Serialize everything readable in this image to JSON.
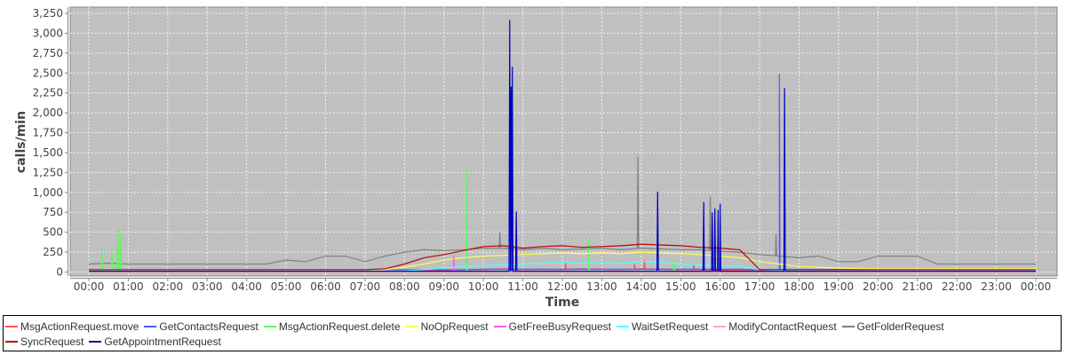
{
  "chart_data": {
    "type": "line",
    "xlabel": "Time",
    "ylabel": "calls/min",
    "ylim": [
      0,
      3250
    ],
    "yticks": [
      "0",
      "250",
      "500",
      "750",
      "1,000",
      "1,250",
      "1,500",
      "1,750",
      "2,000",
      "2,250",
      "2,500",
      "2,750",
      "3,000",
      "3,250"
    ],
    "ytick_values": [
      0,
      250,
      500,
      750,
      1000,
      1250,
      1500,
      1750,
      2000,
      2250,
      2500,
      2750,
      3000,
      3250
    ],
    "xticks": [
      "00:00",
      "01:00",
      "02:00",
      "03:00",
      "04:00",
      "05:00",
      "06:00",
      "07:00",
      "08:00",
      "09:00",
      "10:00",
      "11:00",
      "12:00",
      "13:00",
      "14:00",
      "15:00",
      "16:00",
      "17:00",
      "18:00",
      "19:00",
      "20:00",
      "21:00",
      "22:00",
      "23:00",
      "00:00"
    ],
    "grid": true,
    "legend_position": "bottom",
    "plot_background": "#c0c0c0",
    "sample_times": [
      "00:00",
      "00:30",
      "01:00",
      "01:30",
      "02:00",
      "02:30",
      "03:00",
      "03:30",
      "04:00",
      "04:30",
      "05:00",
      "05:30",
      "06:00",
      "06:30",
      "07:00",
      "07:30",
      "08:00",
      "08:30",
      "09:00",
      "09:30",
      "10:00",
      "10:30",
      "11:00",
      "11:30",
      "12:00",
      "12:30",
      "13:00",
      "13:30",
      "14:00",
      "14:30",
      "15:00",
      "15:30",
      "16:00",
      "16:30",
      "17:00",
      "17:30",
      "18:00",
      "18:30",
      "19:00",
      "19:30",
      "20:00",
      "20:30",
      "21:00",
      "21:30",
      "22:00",
      "22:30",
      "23:00",
      "23:30",
      "24:00"
    ],
    "series": [
      {
        "name": "MsgActionRequest.move",
        "color": "#ff5555",
        "values": [
          10,
          10,
          10,
          10,
          10,
          10,
          10,
          10,
          10,
          10,
          10,
          10,
          10,
          10,
          10,
          10,
          15,
          20,
          25,
          30,
          30,
          40,
          30,
          35,
          30,
          40,
          35,
          30,
          40,
          35,
          30,
          30,
          25,
          20,
          15,
          10,
          10,
          10,
          10,
          10,
          10,
          10,
          10,
          10,
          10,
          10,
          10,
          10,
          10
        ],
        "spikes": [
          [
            "12:05",
            120
          ],
          [
            "13:50",
            100
          ],
          [
            "14:05",
            150
          ],
          [
            "15:20",
            90
          ]
        ]
      },
      {
        "name": "GetContactsRequest",
        "color": "#5555ff",
        "values": [
          30,
          30,
          30,
          30,
          30,
          30,
          30,
          30,
          30,
          30,
          30,
          30,
          30,
          30,
          30,
          30,
          30,
          30,
          30,
          30,
          35,
          35,
          35,
          35,
          35,
          35,
          35,
          35,
          35,
          35,
          35,
          35,
          35,
          35,
          30,
          30,
          30,
          30,
          30,
          30,
          30,
          30,
          30,
          30,
          30,
          30,
          30,
          30,
          30
        ],
        "spikes": [
          [
            "17:30",
            2490
          ]
        ]
      },
      {
        "name": "MsgActionRequest.delete",
        "color": "#55ff55",
        "values": [
          5,
          5,
          5,
          5,
          5,
          5,
          5,
          5,
          5,
          5,
          5,
          5,
          5,
          5,
          5,
          5,
          10,
          10,
          10,
          10,
          10,
          10,
          10,
          10,
          10,
          10,
          10,
          10,
          10,
          10,
          10,
          10,
          10,
          10,
          5,
          5,
          5,
          5,
          5,
          5,
          5,
          5,
          5,
          5,
          5,
          5,
          5,
          5,
          5
        ],
        "spikes": [
          [
            "00:20",
            270
          ],
          [
            "00:35",
            270
          ],
          [
            "00:44",
            560
          ],
          [
            "00:48",
            480
          ],
          [
            "09:35",
            1320
          ],
          [
            "12:40",
            400
          ],
          [
            "14:50",
            150
          ],
          [
            "21:55",
            40
          ],
          [
            "22:55",
            60
          ]
        ]
      },
      {
        "name": "NoOpRequest",
        "color": "#ffff55",
        "values": [
          30,
          35,
          30,
          30,
          30,
          30,
          30,
          30,
          30,
          30,
          30,
          30,
          30,
          30,
          30,
          30,
          60,
          100,
          150,
          180,
          200,
          210,
          220,
          230,
          240,
          230,
          240,
          230,
          250,
          240,
          230,
          220,
          200,
          180,
          130,
          100,
          70,
          60,
          50,
          45,
          40,
          40,
          40,
          40,
          40,
          40,
          40,
          40,
          40
        ],
        "spikes": []
      },
      {
        "name": "GetFreeBusyRequest",
        "color": "#ff55ff",
        "values": [
          5,
          5,
          5,
          5,
          5,
          5,
          5,
          5,
          5,
          5,
          5,
          5,
          5,
          5,
          5,
          5,
          5,
          5,
          5,
          5,
          5,
          5,
          5,
          5,
          5,
          5,
          5,
          5,
          5,
          5,
          5,
          5,
          5,
          5,
          5,
          5,
          5,
          5,
          5,
          5,
          5,
          5,
          5,
          5,
          5,
          5,
          5,
          5,
          5
        ],
        "spikes": [
          [
            "09:15",
            200
          ]
        ]
      },
      {
        "name": "WaitSetRequest",
        "color": "#55ffff",
        "values": [
          10,
          10,
          10,
          10,
          10,
          10,
          10,
          10,
          10,
          10,
          10,
          10,
          10,
          10,
          10,
          10,
          15,
          30,
          50,
          70,
          80,
          90,
          100,
          110,
          120,
          110,
          120,
          110,
          130,
          120,
          100,
          90,
          80,
          70,
          30,
          20,
          15,
          10,
          10,
          10,
          10,
          10,
          10,
          10,
          10,
          10,
          10,
          10,
          10
        ],
        "spikes": []
      },
      {
        "name": "ModifyContactRequest",
        "color": "#ffafaf",
        "values": [
          2,
          2,
          2,
          2,
          2,
          2,
          2,
          2,
          2,
          2,
          2,
          2,
          2,
          2,
          2,
          2,
          2,
          2,
          2,
          2,
          2,
          2,
          2,
          2,
          2,
          2,
          2,
          2,
          2,
          2,
          2,
          2,
          2,
          2,
          2,
          2,
          2,
          2,
          2,
          2,
          2,
          2,
          2,
          2,
          2,
          2,
          2,
          2,
          2
        ],
        "spikes": []
      },
      {
        "name": "GetFolderRequest",
        "color": "#808080",
        "values": [
          100,
          110,
          100,
          100,
          100,
          100,
          100,
          100,
          100,
          100,
          150,
          130,
          200,
          200,
          130,
          200,
          250,
          280,
          270,
          280,
          300,
          300,
          280,
          300,
          280,
          290,
          300,
          280,
          300,
          290,
          280,
          280,
          260,
          250,
          220,
          200,
          180,
          200,
          130,
          130,
          200,
          200,
          200,
          100,
          100,
          100,
          100,
          100,
          100
        ],
        "spikes": [
          [
            "10:25",
            500
          ],
          [
            "13:55",
            1450
          ],
          [
            "15:45",
            950
          ],
          [
            "17:25",
            480
          ]
        ]
      },
      {
        "name": "SyncRequest",
        "color": "#c00000",
        "values": [
          30,
          30,
          30,
          30,
          30,
          30,
          30,
          30,
          30,
          30,
          30,
          30,
          30,
          30,
          30,
          40,
          100,
          180,
          220,
          270,
          320,
          330,
          300,
          320,
          330,
          310,
          320,
          330,
          350,
          340,
          330,
          310,
          300,
          280,
          30,
          30,
          30,
          30,
          30,
          30,
          30,
          30,
          30,
          30,
          30,
          30,
          30,
          30,
          30
        ],
        "spikes": []
      },
      {
        "name": "GetAppointmentRequest",
        "color": "#0000c0",
        "values": [
          10,
          10,
          10,
          10,
          10,
          10,
          10,
          10,
          10,
          10,
          10,
          10,
          10,
          10,
          10,
          10,
          10,
          10,
          10,
          10,
          10,
          10,
          10,
          10,
          10,
          10,
          10,
          10,
          10,
          10,
          10,
          10,
          10,
          10,
          10,
          10,
          10,
          10,
          10,
          10,
          10,
          10,
          10,
          10,
          10,
          10,
          10,
          10,
          10
        ],
        "spikes": [
          [
            "10:40",
            3170
          ],
          [
            "10:42",
            2330
          ],
          [
            "10:44",
            2580
          ],
          [
            "10:50",
            760
          ],
          [
            "14:25",
            1010
          ],
          [
            "15:35",
            880
          ],
          [
            "15:48",
            750
          ],
          [
            "15:52",
            800
          ],
          [
            "15:57",
            780
          ],
          [
            "16:00",
            860
          ],
          [
            "17:38",
            2310
          ]
        ]
      }
    ]
  }
}
